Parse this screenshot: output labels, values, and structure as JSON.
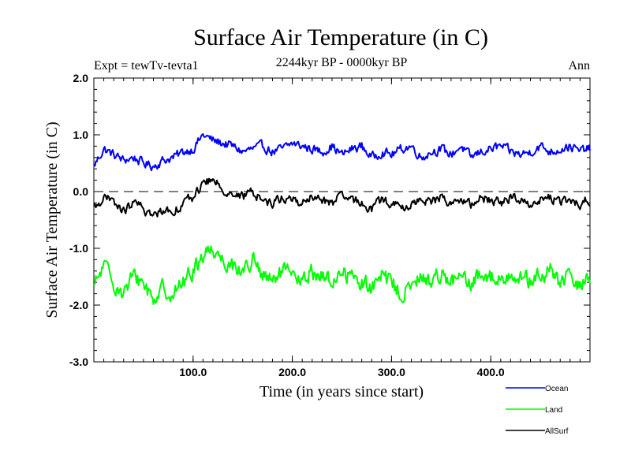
{
  "chart_data": {
    "type": "line",
    "title": "Surface Air Temperature (in C)",
    "subtitle": "2244kyr BP - 0000kyr BP",
    "left_label": "Expt = tewTv-tevta1",
    "right_label": "Ann",
    "xlabel": "Time (in years since start)",
    "ylabel": "Surface Air Temperature (in C)",
    "xlim": [
      0,
      500
    ],
    "ylim": [
      -3.0,
      2.0
    ],
    "x_ticks": [
      100,
      200,
      300,
      400
    ],
    "x_tick_labels": [
      "100.0",
      "200.0",
      "300.0",
      "400.0"
    ],
    "y_ticks": [
      2.0,
      1.0,
      0.0,
      -1.0,
      -2.0,
      -3.0
    ],
    "y_tick_labels": [
      "2.0",
      "1.0",
      "0.0",
      "-1.0",
      "-2.0",
      "-3.0"
    ],
    "reference_line": 0.0,
    "legend_position": "bottom-right, outside plot",
    "series": [
      {
        "name": "Ocean",
        "color": "#0000ff",
        "x": [
          0,
          10,
          20,
          30,
          40,
          50,
          60,
          70,
          80,
          90,
          100,
          110,
          120,
          130,
          140,
          150,
          160,
          170,
          180,
          190,
          200,
          210,
          220,
          230,
          240,
          250,
          260,
          270,
          280,
          290,
          300,
          310,
          320,
          330,
          340,
          350,
          360,
          370,
          380,
          390,
          400,
          410,
          420,
          430,
          440,
          450,
          460,
          470,
          480,
          490,
          495
        ],
        "values": [
          0.45,
          0.75,
          0.65,
          0.55,
          0.6,
          0.5,
          0.45,
          0.55,
          0.6,
          0.7,
          0.75,
          1.0,
          0.9,
          0.85,
          0.8,
          0.7,
          0.75,
          0.8,
          0.7,
          0.75,
          0.85,
          0.8,
          0.75,
          0.7,
          0.8,
          0.65,
          0.75,
          0.8,
          0.6,
          0.7,
          0.65,
          0.75,
          0.8,
          0.6,
          0.7,
          0.75,
          0.65,
          0.8,
          0.6,
          0.7,
          0.75,
          0.8,
          0.7,
          0.65,
          0.7,
          0.8,
          0.7,
          0.75,
          0.8,
          0.7,
          0.75
        ]
      },
      {
        "name": "Land",
        "color": "#00ff00",
        "x": [
          0,
          10,
          20,
          30,
          40,
          50,
          60,
          70,
          80,
          90,
          100,
          110,
          120,
          130,
          140,
          150,
          160,
          170,
          180,
          190,
          200,
          210,
          220,
          230,
          240,
          250,
          260,
          270,
          280,
          290,
          300,
          310,
          320,
          330,
          340,
          350,
          360,
          370,
          380,
          390,
          400,
          410,
          420,
          430,
          440,
          450,
          460,
          470,
          480,
          490,
          495
        ],
        "values": [
          -1.7,
          -1.3,
          -1.6,
          -1.8,
          -1.5,
          -1.6,
          -1.9,
          -1.7,
          -1.8,
          -1.6,
          -1.4,
          -1.1,
          -1.0,
          -1.2,
          -1.3,
          -1.4,
          -1.2,
          -1.5,
          -1.6,
          -1.4,
          -1.5,
          -1.6,
          -1.4,
          -1.5,
          -1.6,
          -1.4,
          -1.5,
          -1.6,
          -1.7,
          -1.5,
          -1.6,
          -1.8,
          -1.7,
          -1.5,
          -1.6,
          -1.4,
          -1.6,
          -1.5,
          -1.7,
          -1.4,
          -1.5,
          -1.6,
          -1.4,
          -1.5,
          -1.6,
          -1.5,
          -1.4,
          -1.6,
          -1.5,
          -1.7,
          -1.5
        ]
      },
      {
        "name": "AllSurf",
        "color": "#000000",
        "x": [
          0,
          10,
          20,
          30,
          40,
          50,
          60,
          70,
          80,
          90,
          100,
          110,
          120,
          130,
          140,
          150,
          160,
          170,
          180,
          190,
          200,
          210,
          220,
          230,
          240,
          250,
          260,
          270,
          280,
          290,
          300,
          310,
          320,
          330,
          340,
          350,
          360,
          370,
          380,
          390,
          400,
          410,
          420,
          430,
          440,
          450,
          460,
          470,
          480,
          490,
          495
        ],
        "values": [
          -0.3,
          -0.1,
          -0.2,
          -0.35,
          -0.2,
          -0.3,
          -0.45,
          -0.3,
          -0.35,
          -0.2,
          -0.1,
          0.15,
          0.2,
          0.05,
          -0.05,
          -0.1,
          0.0,
          -0.15,
          -0.2,
          -0.1,
          -0.15,
          -0.2,
          -0.1,
          -0.15,
          -0.2,
          -0.1,
          -0.15,
          -0.2,
          -0.3,
          -0.15,
          -0.2,
          -0.3,
          -0.25,
          -0.1,
          -0.2,
          -0.1,
          -0.2,
          -0.15,
          -0.25,
          -0.1,
          -0.15,
          -0.2,
          -0.1,
          -0.15,
          -0.2,
          -0.15,
          -0.1,
          -0.2,
          -0.15,
          -0.25,
          -0.15
        ]
      }
    ]
  }
}
